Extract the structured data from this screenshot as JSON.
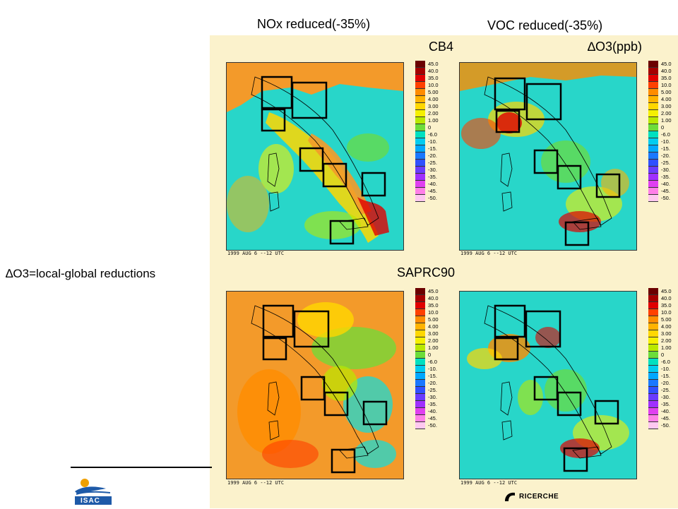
{
  "headers": {
    "nox": "NOx reduced(-35%)",
    "voc": "VOC reduced(-35%)"
  },
  "mechanisms": {
    "top": "CB4",
    "bottom": "SAPRC90"
  },
  "units_label": "∆O3(ppb)",
  "left_note": "∆O3=local-global reductions",
  "map_date": "1999  AUG  6  --12 UTC",
  "colorbar": {
    "levels": [
      "45.0",
      "40.0",
      "35.0",
      "10.0",
      "5.00",
      "4.00",
      "3.00",
      "2.00",
      "1.00",
      "0",
      "-6.0",
      "-10.",
      "-15.",
      "-20.",
      "-25.",
      "-30.",
      "-35.",
      "-40.",
      "-45.",
      "-50."
    ],
    "colors": [
      "#6b0000",
      "#a50000",
      "#e00000",
      "#ff4000",
      "#ff8c00",
      "#ffb300",
      "#ffd700",
      "#f5f000",
      "#b9e800",
      "#6cdc3a",
      "#00e0c0",
      "#00ccf0",
      "#00a8ff",
      "#1a78ff",
      "#3050ff",
      "#6a3cff",
      "#a030ff",
      "#e040f0",
      "#ff80e8",
      "#ffc8f0"
    ]
  },
  "logos": {
    "isac": "ISAC",
    "cnr": "RICERCHE"
  },
  "colors": {
    "panel_bg": "#fbf2cc",
    "sea": "#28d6c9",
    "land_warm": "#f39a2a",
    "box_stroke": "#000000"
  }
}
